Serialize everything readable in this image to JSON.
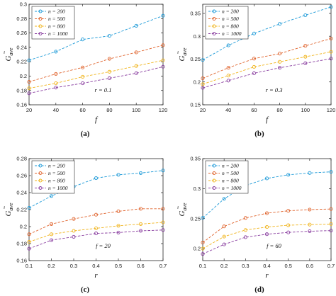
{
  "chart_data": [
    {
      "type": "line",
      "caption": "(a)",
      "annotation": "r = 0.1",
      "xlabel": "f",
      "ylabel": "G",
      "ylabel_sub": "ave",
      "xlim": [
        20,
        120
      ],
      "ylim": [
        0.16,
        0.3
      ],
      "xticks": [
        "20",
        "40",
        "60",
        "80",
        "100",
        "120"
      ],
      "yticks": [
        "0.16",
        "0.18",
        "0.2",
        "0.22",
        "0.24",
        "0.26",
        "0.28",
        "0.3"
      ],
      "x": [
        20,
        40,
        60,
        80,
        100,
        120
      ],
      "legend_position": "top-left",
      "series": [
        {
          "name": "n = 200",
          "color": "#1f9bd8",
          "values": [
            0.222,
            0.234,
            0.251,
            0.256,
            0.27,
            0.284
          ]
        },
        {
          "name": "n = 500",
          "color": "#e0652f",
          "values": [
            0.192,
            0.203,
            0.212,
            0.224,
            0.233,
            0.243
          ]
        },
        {
          "name": "n = 800",
          "color": "#f0b41c",
          "values": [
            0.183,
            0.19,
            0.199,
            0.206,
            0.214,
            0.222
          ]
        },
        {
          "name": "n = 1000",
          "color": "#8a3fa0",
          "values": [
            0.176,
            0.184,
            0.19,
            0.197,
            0.204,
            0.213
          ]
        }
      ]
    },
    {
      "type": "line",
      "caption": "(b)",
      "annotation": "r = 0.3",
      "xlabel": "f",
      "ylabel": "G",
      "ylabel_sub": "ave",
      "xlim": [
        20,
        120
      ],
      "ylim": [
        0.15,
        0.37
      ],
      "xticks": [
        "20",
        "40",
        "60",
        "80",
        "100",
        "120"
      ],
      "yticks": [
        "0.15",
        "0.2",
        "0.25",
        "0.3",
        "0.35"
      ],
      "x": [
        20,
        40,
        60,
        80,
        100,
        120
      ],
      "legend_position": "top-left",
      "series": [
        {
          "name": "n = 200",
          "color": "#1f9bd8",
          "values": [
            0.248,
            0.28,
            0.306,
            0.327,
            0.346,
            0.364
          ]
        },
        {
          "name": "n = 500",
          "color": "#e0652f",
          "values": [
            0.208,
            0.231,
            0.251,
            0.262,
            0.279,
            0.295
          ]
        },
        {
          "name": "n = 800",
          "color": "#f0b41c",
          "values": [
            0.195,
            0.214,
            0.233,
            0.244,
            0.255,
            0.266
          ]
        },
        {
          "name": "n = 1000",
          "color": "#8a3fa0",
          "values": [
            0.187,
            0.203,
            0.219,
            0.231,
            0.241,
            0.251
          ]
        }
      ]
    },
    {
      "type": "line",
      "caption": "(c)",
      "annotation": "f = 20",
      "xlabel": "r",
      "ylabel": "G",
      "ylabel_sub": "ave",
      "xlim": [
        0.1,
        0.7
      ],
      "ylim": [
        0.16,
        0.28
      ],
      "xticks": [
        "0.1",
        "0.2",
        "0.3",
        "0.4",
        "0.5",
        "0.6",
        "0.7"
      ],
      "yticks": [
        "0.16",
        "0.18",
        "0.2",
        "0.22",
        "0.24",
        "0.26",
        "0.28"
      ],
      "x": [
        0.1,
        0.2,
        0.3,
        0.4,
        0.5,
        0.6,
        0.7
      ],
      "legend_position": "top-left",
      "series": [
        {
          "name": "n = 200",
          "color": "#1f9bd8",
          "values": [
            0.222,
            0.236,
            0.247,
            0.257,
            0.261,
            0.263,
            0.266
          ]
        },
        {
          "name": "n = 500",
          "color": "#e0652f",
          "values": [
            0.191,
            0.203,
            0.209,
            0.214,
            0.218,
            0.221,
            0.221
          ]
        },
        {
          "name": "n = 800",
          "color": "#f0b41c",
          "values": [
            0.182,
            0.191,
            0.195,
            0.198,
            0.201,
            0.203,
            0.205
          ]
        },
        {
          "name": "n = 1000",
          "color": "#8a3fa0",
          "values": [
            0.174,
            0.184,
            0.188,
            0.192,
            0.193,
            0.195,
            0.196
          ]
        }
      ]
    },
    {
      "type": "line",
      "caption": "(d)",
      "annotation": "f = 60",
      "xlabel": "r",
      "ylabel": "G",
      "ylabel_sub": "ave",
      "xlim": [
        0.1,
        0.7
      ],
      "ylim": [
        0.18,
        0.35
      ],
      "xticks": [
        "0.1",
        "0.2",
        "0.3",
        "0.4",
        "0.5",
        "0.6",
        "0.7"
      ],
      "yticks": [
        "0.2",
        "0.25",
        "0.3",
        "0.35"
      ],
      "x": [
        0.1,
        0.2,
        0.3,
        0.4,
        0.5,
        0.6,
        0.7
      ],
      "legend_position": "top-left",
      "series": [
        {
          "name": "n = 200",
          "color": "#1f9bd8",
          "values": [
            0.251,
            0.283,
            0.305,
            0.317,
            0.323,
            0.326,
            0.328
          ]
        },
        {
          "name": "n = 500",
          "color": "#e0652f",
          "values": [
            0.21,
            0.237,
            0.251,
            0.259,
            0.263,
            0.265,
            0.266
          ]
        },
        {
          "name": "n = 800",
          "color": "#f0b41c",
          "values": [
            0.2,
            0.22,
            0.231,
            0.236,
            0.239,
            0.24,
            0.241
          ]
        },
        {
          "name": "n = 1000",
          "color": "#8a3fa0",
          "values": [
            0.191,
            0.207,
            0.219,
            0.224,
            0.227,
            0.229,
            0.23
          ]
        }
      ]
    }
  ]
}
